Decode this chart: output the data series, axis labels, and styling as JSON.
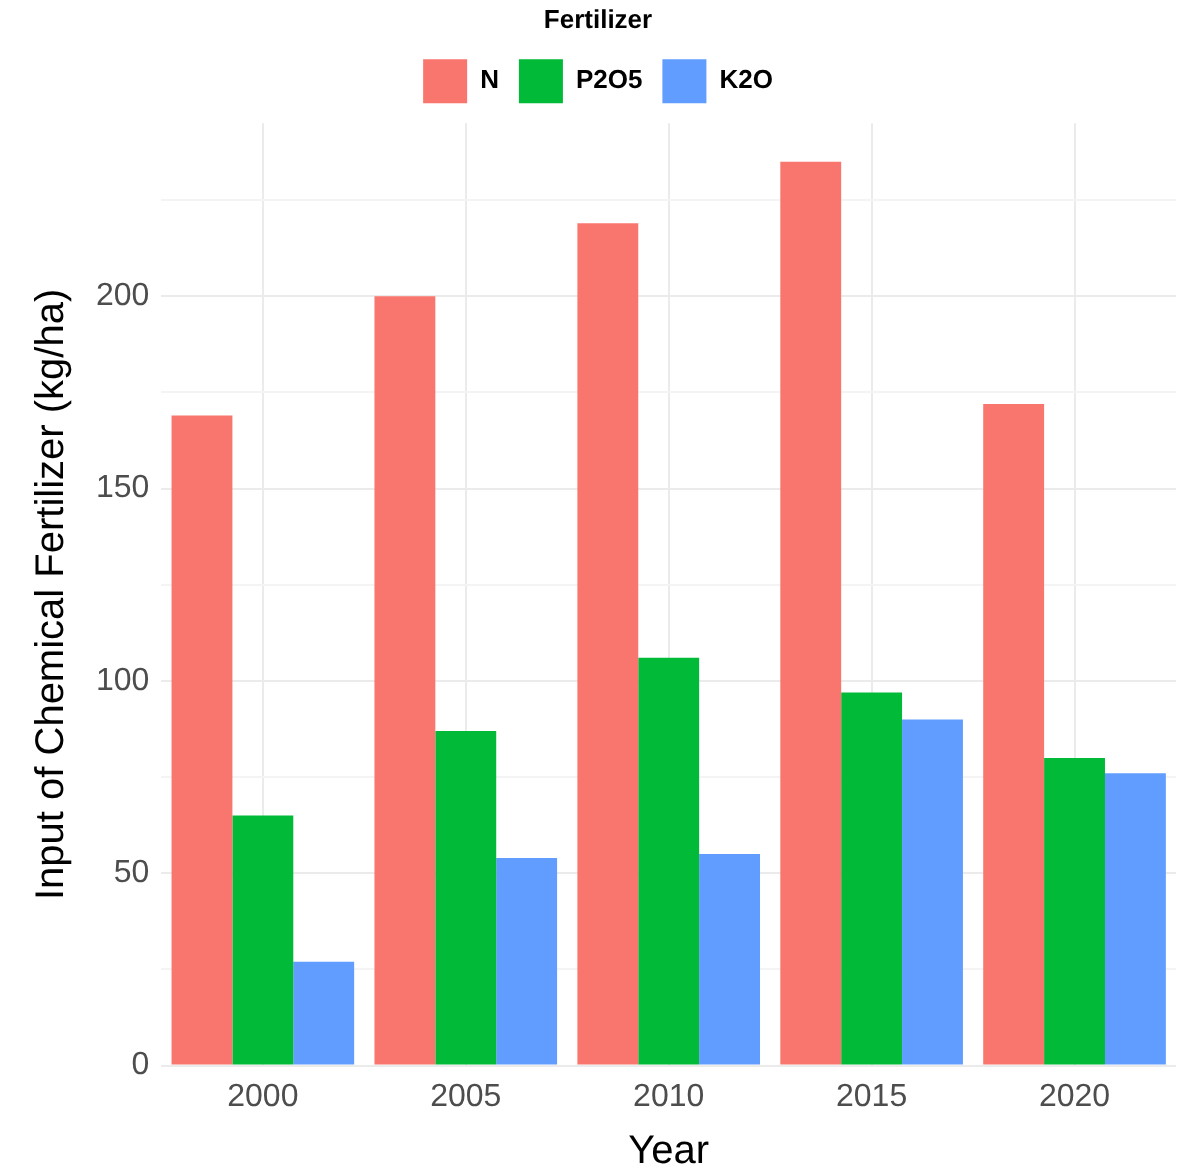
{
  "chart_data": {
    "type": "bar",
    "xlabel": "Year",
    "ylabel": "Input of Chemical Fertilizer (kg/ha)",
    "legend_title": "Fertilizer",
    "legend": "top",
    "grid": true,
    "categories": [
      "2000",
      "2005",
      "2010",
      "2015",
      "2020"
    ],
    "series": [
      {
        "name": "N",
        "color": "#f8766d",
        "values": [
          169,
          200,
          219,
          235,
          172
        ]
      },
      {
        "name": "P2O5",
        "color": "#00ba38",
        "values": [
          65,
          87,
          106,
          97,
          80
        ]
      },
      {
        "name": "K2O",
        "color": "#619cff",
        "values": [
          27,
          54,
          55,
          90,
          76
        ]
      }
    ],
    "ylim": [
      0,
      245
    ],
    "yticks": [
      0,
      {
        "value": 25,
        "label": null
      },
      50,
      {
        "value": 75,
        "label": null
      },
      100,
      {
        "value": 125,
        "label": null
      },
      150,
      {
        "value": 175,
        "label": null
      },
      200,
      {
        "value": 225,
        "label": null
      }
    ]
  }
}
